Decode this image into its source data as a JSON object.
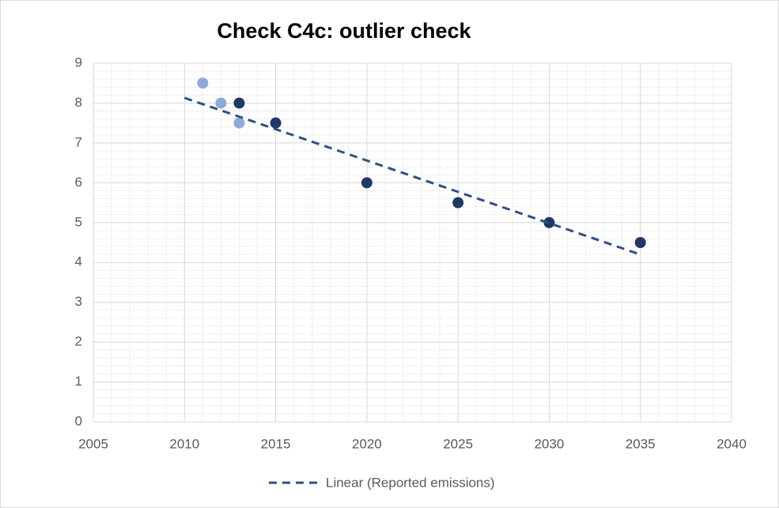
{
  "chart_data": {
    "type": "scatter",
    "title": "Check C4c: outlier check",
    "series": [
      {
        "color": "#8eaadb",
        "x": [
          2011,
          2012,
          2013
        ],
        "values": [
          8.5,
          8,
          7.5
        ]
      },
      {
        "color": "#203864",
        "x": [
          2013,
          2015,
          2020,
          2025,
          2030,
          2035
        ],
        "values": [
          8,
          7.5,
          6,
          5.5,
          5,
          4.5
        ]
      }
    ],
    "trendline": {
      "label": "Linear (Reported emissions)",
      "color": "#2e5183",
      "x": [
        2010,
        2035
      ],
      "values": [
        8.13,
        4.2
      ]
    },
    "xlim": [
      2005,
      2040
    ],
    "xticks": [
      2005,
      2010,
      2015,
      2020,
      2025,
      2030,
      2035,
      2040
    ],
    "ylim": [
      0,
      9
    ],
    "yticks": [
      0,
      1,
      2,
      3,
      4,
      5,
      6,
      7,
      8,
      9
    ],
    "grid": true,
    "minor_grid": true,
    "xminor_step": 1,
    "yminor_step": 0.2,
    "legend": "bottom"
  }
}
